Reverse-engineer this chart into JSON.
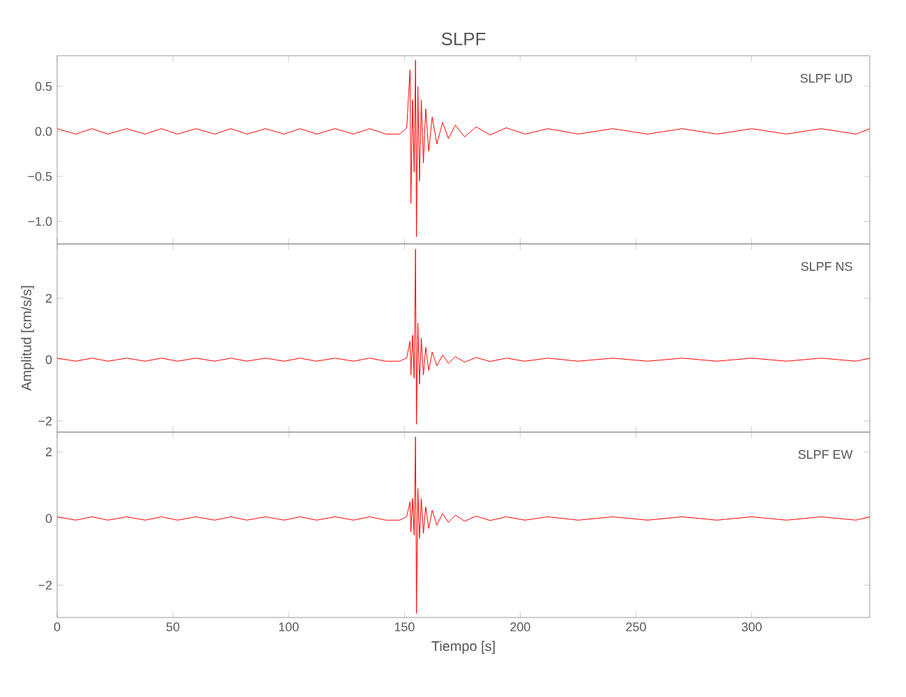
{
  "chart_data": [
    {
      "type": "line",
      "title": "SLPF",
      "annotations": [
        "SLPF   UD"
      ],
      "x": [
        0,
        8,
        15,
        22,
        30,
        38,
        45,
        52,
        60,
        68,
        75,
        82,
        90,
        98,
        105,
        112,
        120,
        128,
        135,
        142,
        148,
        151,
        152.4,
        152.8,
        153.5,
        154.2,
        154.8,
        155.2,
        155.8,
        156.5,
        157.3,
        158.2,
        159.2,
        160.5,
        162,
        164,
        166.5,
        169,
        172,
        176,
        181,
        187,
        194,
        202,
        212,
        225,
        240,
        255,
        270,
        285,
        300,
        315,
        330,
        345,
        351
      ],
      "series": [
        {
          "color": "#ff0000",
          "values": [
            0.03,
            -0.03,
            0.03,
            -0.03,
            0.03,
            -0.03,
            0.03,
            -0.03,
            0.03,
            -0.03,
            0.03,
            -0.03,
            0.03,
            -0.03,
            0.03,
            -0.03,
            0.03,
            -0.03,
            0.03,
            -0.03,
            -0.03,
            0.04,
            0.68,
            -0.8,
            0.35,
            -0.45,
            0.79,
            -1.17,
            0.5,
            -0.55,
            0.35,
            -0.35,
            0.25,
            -0.22,
            0.16,
            -0.14,
            0.1,
            -0.08,
            0.07,
            -0.06,
            0.05,
            -0.04,
            0.04,
            -0.03,
            0.03,
            -0.03,
            0.03,
            -0.03,
            0.03,
            -0.03,
            0.03,
            -0.03,
            0.03,
            -0.03,
            0.03
          ]
        }
      ],
      "xlim": [
        0,
        351
      ],
      "xticks": [
        0,
        50,
        100,
        150,
        200,
        250,
        300
      ],
      "ylim": [
        -1.25,
        0.84
      ],
      "yticks": [
        {
          "value": 0.5,
          "label": "0.5"
        },
        {
          "value": 0,
          "label": "0.0"
        },
        {
          "value": -0.5,
          "label": "−0.5"
        },
        {
          "value": -1.0,
          "label": "−1.0"
        }
      ],
      "tick_labels": "y"
    },
    {
      "type": "line",
      "ylabel": "Amplitud [cm/s/s]",
      "annotations": [
        "SLPF   NS"
      ],
      "x": [
        0,
        8,
        15,
        22,
        30,
        38,
        45,
        52,
        60,
        68,
        75,
        82,
        90,
        98,
        105,
        112,
        120,
        128,
        135,
        142,
        148,
        151,
        152.4,
        152.8,
        153.5,
        154.2,
        154.8,
        155.2,
        155.8,
        156.5,
        157.3,
        158.2,
        159.2,
        160.5,
        162,
        164,
        166.5,
        169,
        172,
        176,
        181,
        187,
        194,
        202,
        212,
        225,
        240,
        255,
        270,
        285,
        300,
        315,
        330,
        345,
        351
      ],
      "series": [
        {
          "color": "#ff0000",
          "values": [
            0.05,
            -0.05,
            0.05,
            -0.05,
            0.05,
            -0.05,
            0.05,
            -0.05,
            0.05,
            -0.05,
            0.05,
            -0.05,
            0.05,
            -0.05,
            0.05,
            -0.05,
            0.05,
            -0.05,
            0.05,
            -0.05,
            -0.05,
            0.06,
            0.6,
            -0.5,
            0.8,
            -0.6,
            3.6,
            -2.1,
            1.2,
            -0.8,
            0.7,
            -0.5,
            0.4,
            -0.35,
            0.25,
            -0.2,
            0.15,
            -0.12,
            0.1,
            -0.08,
            0.07,
            -0.06,
            0.05,
            -0.05,
            0.05,
            -0.05,
            0.05,
            -0.05,
            0.05,
            -0.05,
            0.05,
            -0.05,
            0.05,
            -0.05,
            0.05
          ]
        }
      ],
      "xlim": [
        0,
        351
      ],
      "xticks": [
        0,
        50,
        100,
        150,
        200,
        250,
        300
      ],
      "ylim": [
        -2.36,
        3.77
      ],
      "yticks": [
        {
          "value": 2,
          "label": "2"
        },
        {
          "value": 0,
          "label": "0"
        },
        {
          "value": -2,
          "label": "−2"
        }
      ],
      "tick_labels": "y"
    },
    {
      "type": "line",
      "xlabel": "Tiempo [s]",
      "annotations": [
        "SLPF   EW"
      ],
      "x": [
        0,
        8,
        15,
        22,
        30,
        38,
        45,
        52,
        60,
        68,
        75,
        82,
        90,
        98,
        105,
        112,
        120,
        128,
        135,
        142,
        148,
        151,
        152.4,
        152.8,
        153.5,
        154.2,
        154.8,
        155.2,
        155.8,
        156.5,
        157.3,
        158.2,
        159.2,
        160.5,
        162,
        164,
        166.5,
        169,
        172,
        176,
        181,
        187,
        194,
        202,
        212,
        225,
        240,
        255,
        270,
        285,
        300,
        315,
        330,
        345,
        351
      ],
      "series": [
        {
          "color": "#ff0000",
          "values": [
            0.05,
            -0.05,
            0.05,
            -0.05,
            0.05,
            -0.05,
            0.05,
            -0.05,
            0.05,
            -0.05,
            0.05,
            -0.05,
            0.05,
            -0.05,
            0.05,
            -0.05,
            0.05,
            -0.05,
            0.05,
            -0.05,
            -0.05,
            0.06,
            0.5,
            -0.4,
            0.6,
            -0.5,
            2.45,
            -2.85,
            0.9,
            -0.6,
            0.6,
            -0.45,
            0.35,
            -0.3,
            0.25,
            -0.2,
            0.15,
            -0.12,
            0.1,
            -0.08,
            0.07,
            -0.06,
            0.05,
            -0.05,
            0.05,
            -0.05,
            0.05,
            -0.05,
            0.05,
            -0.05,
            0.05,
            -0.05,
            0.05,
            -0.05,
            0.05
          ]
        }
      ],
      "xlim": [
        0,
        351
      ],
      "xticks": [
        0,
        50,
        100,
        150,
        200,
        250,
        300
      ],
      "ylim": [
        -2.97,
        2.59
      ],
      "yticks": [
        {
          "value": 2,
          "label": "2"
        },
        {
          "value": 0,
          "label": "0"
        },
        {
          "value": -2,
          "label": "−2"
        }
      ]
    }
  ]
}
